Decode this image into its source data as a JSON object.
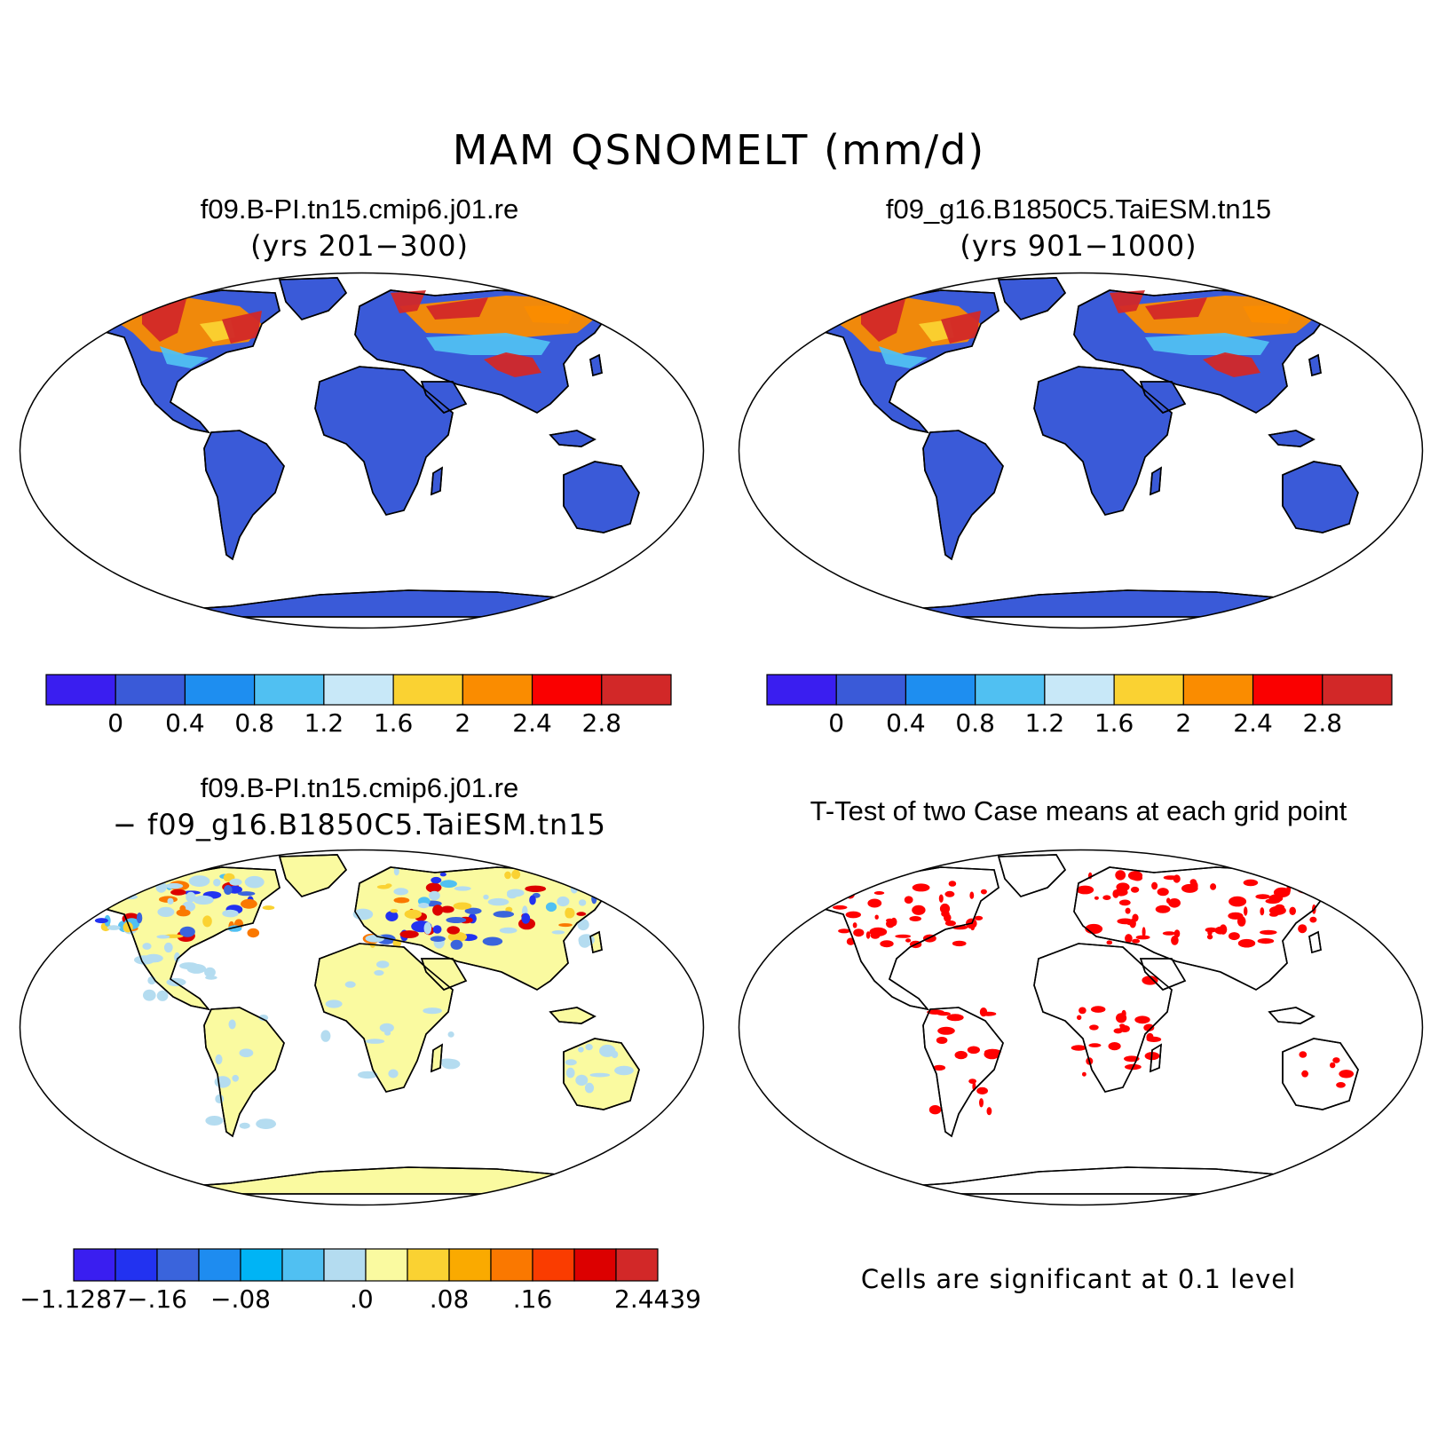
{
  "title": "MAM QSNOMELT (mm/d)",
  "panels": [
    {
      "title": "f09.B-PI.tn15.cmip6.j01.re",
      "subtitle": "(yrs 201−300)",
      "colorbar": {
        "colors": [
          "#3a1ef0",
          "#3a5ad8",
          "#1e8ef0",
          "#50c0f2",
          "#c8e8f8",
          "#fad232",
          "#fa8c00",
          "#fa0000",
          "#d22828"
        ],
        "labels": [
          "0",
          "0.4",
          "0.8",
          "1.2",
          "1.6",
          "2",
          "2.4",
          "2.8"
        ]
      }
    },
    {
      "title": "f09_g16.B1850C5.TaiESM.tn15",
      "subtitle": "(yrs 901−1000)",
      "colorbar": {
        "colors": [
          "#3a1ef0",
          "#3a5ad8",
          "#1e8ef0",
          "#50c0f2",
          "#c8e8f8",
          "#fad232",
          "#fa8c00",
          "#fa0000",
          "#d22828"
        ],
        "labels": [
          "0",
          "0.4",
          "0.8",
          "1.2",
          "1.6",
          "2",
          "2.4",
          "2.8"
        ]
      }
    },
    {
      "title": "f09.B-PI.tn15.cmip6.j01.re",
      "subtitle": "− f09_g16.B1850C5.TaiESM.tn15",
      "colorbar": {
        "colors": [
          "#3a1ef0",
          "#2232f0",
          "#3a64dc",
          "#1e8cf0",
          "#00b4f5",
          "#50c0f2",
          "#b4dcf0",
          "#fafaa0",
          "#fad232",
          "#faaa00",
          "#fa7800",
          "#fa3c00",
          "#dc0000",
          "#d22828"
        ],
        "labels": [
          "−1.1287",
          "−.16",
          "−.08",
          ".0",
          ".08",
          ".16",
          "2.4439"
        ]
      }
    },
    {
      "title": "T-Test of two Case means at each grid point",
      "note": "Cells are significant at 0.1 level"
    }
  ],
  "colors": {
    "land_base": "#3a5ad8",
    "diff_base": "#fafaa0",
    "significant": "#ff0000",
    "coast": "#000000"
  }
}
